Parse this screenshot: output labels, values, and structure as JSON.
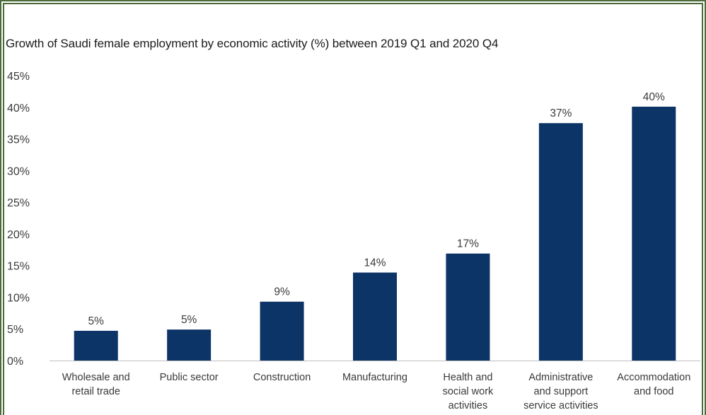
{
  "chart_data": {
    "type": "bar",
    "title": "Growth of Saudi female employment by economic activity (%) between 2019 Q1 and 2020 Q4",
    "xlabel": "",
    "ylabel": "",
    "ylim": [
      0,
      45
    ],
    "y_ticks": [
      "0%",
      "5%",
      "10%",
      "15%",
      "20%",
      "25%",
      "30%",
      "35%",
      "40%",
      "45%"
    ],
    "categories": [
      "Wholesale and retail trade",
      "Public sector",
      "Construction",
      "Manufacturing",
      "Health and social work activities",
      "Administrative and support service activities",
      "Accommodation and food"
    ],
    "category_lines": [
      [
        "Wholesale and",
        "retail trade"
      ],
      [
        "Public sector"
      ],
      [
        "Construction"
      ],
      [
        "Manufacturing"
      ],
      [
        "Health and",
        "social work",
        "activities"
      ],
      [
        "Administrative",
        "and support",
        "service activities"
      ],
      [
        "Accommodation",
        "and food"
      ]
    ],
    "values": [
      4.7,
      4.9,
      9.3,
      13.9,
      16.9,
      37.5,
      40.1
    ],
    "value_labels": [
      "5%",
      "5%",
      "9%",
      "14%",
      "17%",
      "37%",
      "40%"
    ],
    "grid": false,
    "legend": "none",
    "bar_color": "#0c3466",
    "axis_color": "#bfbfbf",
    "frame_color": "#4b6b3a"
  }
}
